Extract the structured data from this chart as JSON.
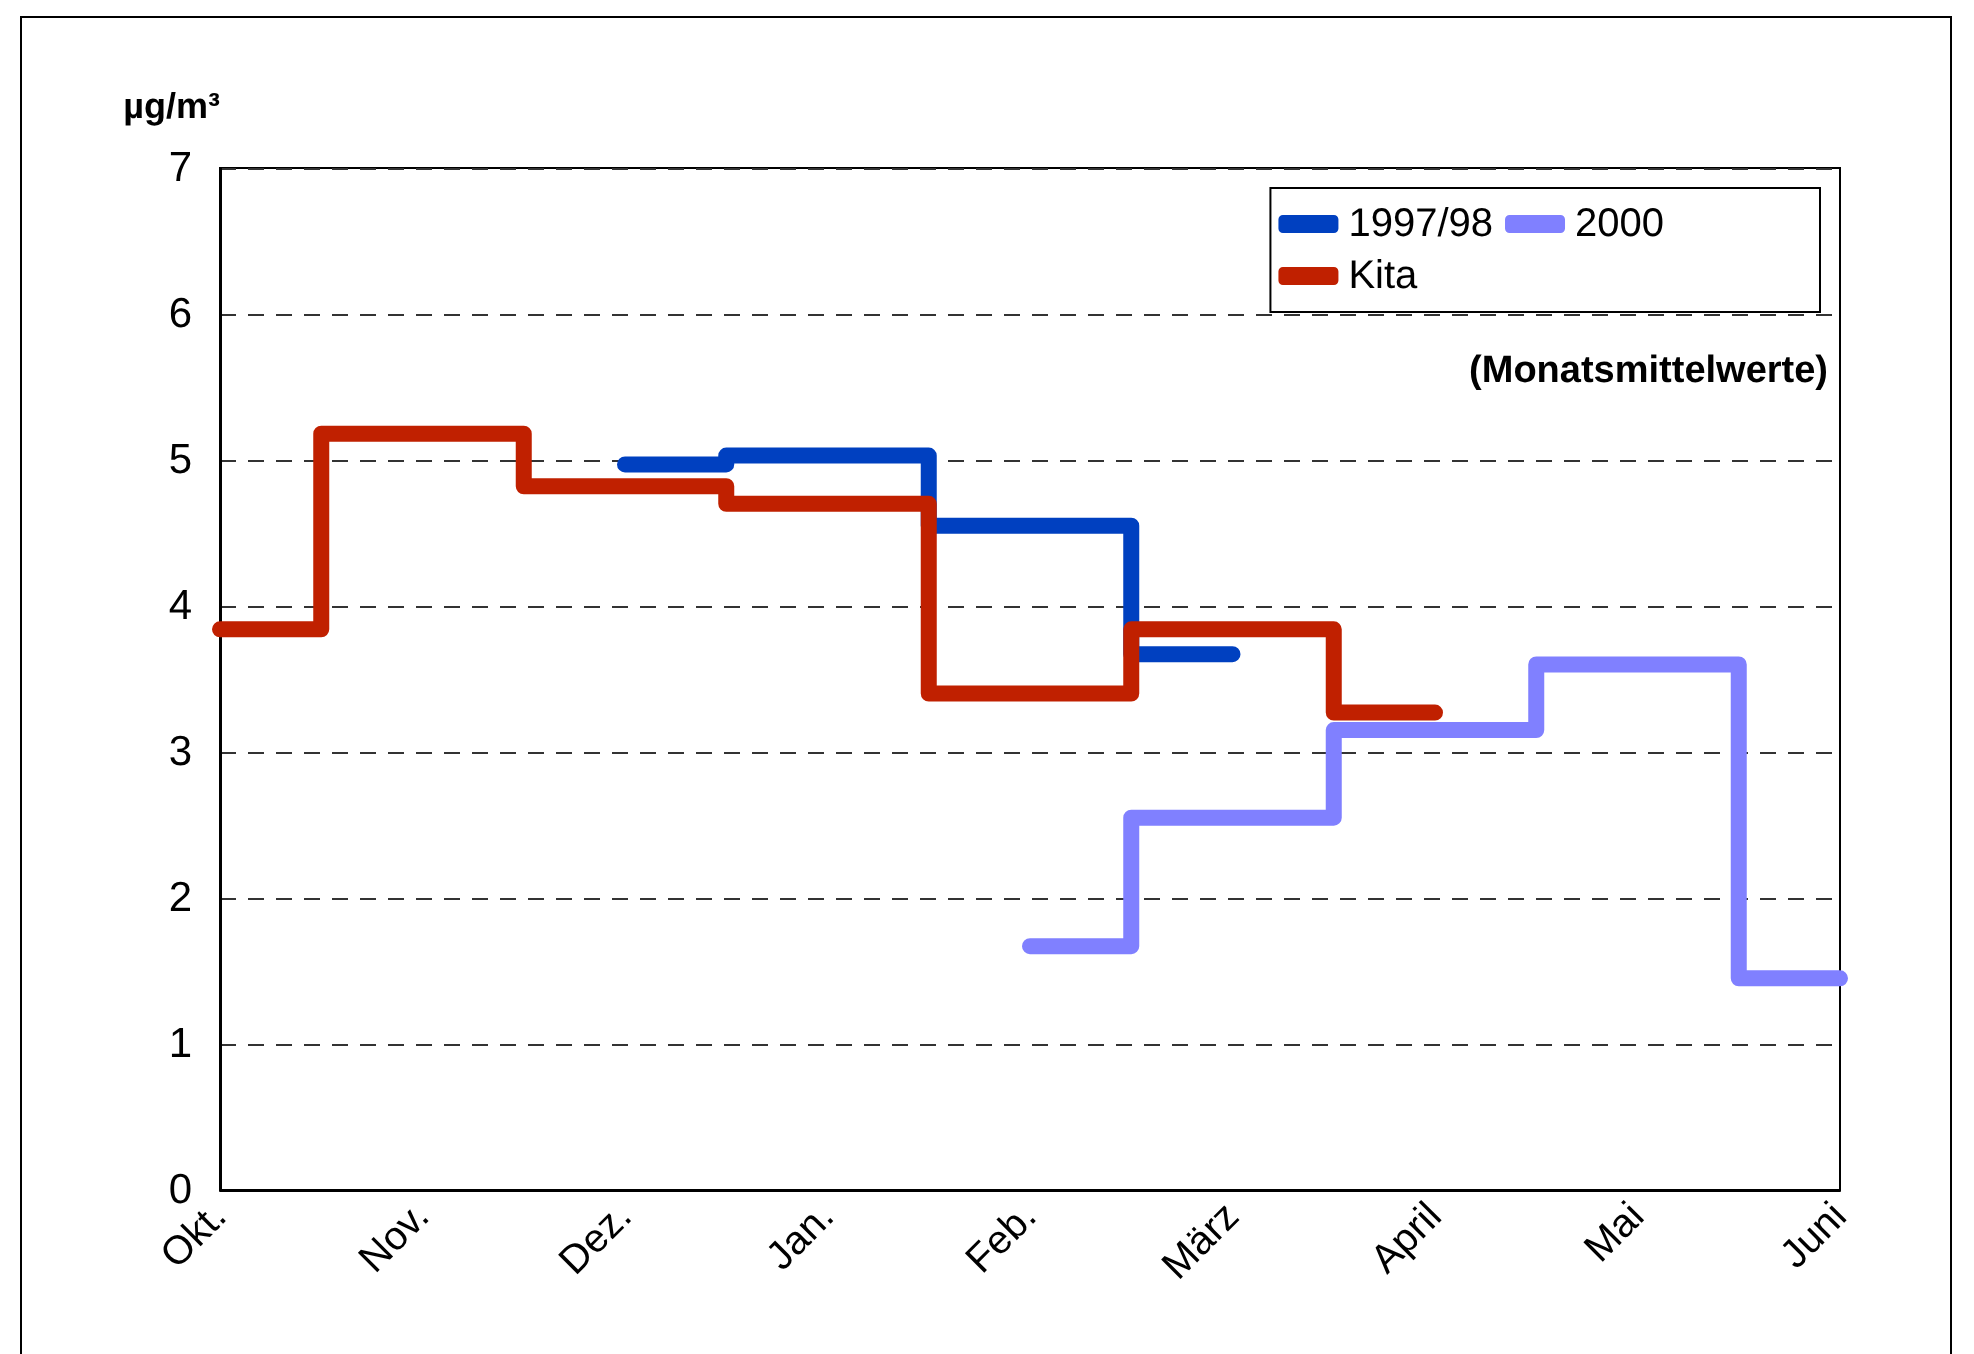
{
  "chart_data": {
    "type": "step",
    "ylabel": "µg/m³",
    "annotations": [
      "(Monatsmittelwerte)"
    ],
    "categories": [
      "Okt.",
      "Nov.",
      "Dez.",
      "Jan.",
      "Feb.",
      "März",
      "April",
      "Mai",
      "Juni"
    ],
    "series": [
      {
        "name": "1997/98",
        "color": "#0040c0",
        "values": [
          null,
          null,
          4.97,
          5.03,
          4.55,
          3.67,
          null,
          null,
          null
        ]
      },
      {
        "name": "2000",
        "color": "#8080ff",
        "values": [
          null,
          null,
          null,
          null,
          1.67,
          2.55,
          3.15,
          3.6,
          1.45
        ]
      },
      {
        "name": "Kita",
        "color": "#c02000",
        "values": [
          3.84,
          5.18,
          4.82,
          4.7,
          3.4,
          3.84,
          3.27,
          null,
          null
        ]
      }
    ],
    "ylim": [
      0,
      7
    ],
    "yticks": [
      0,
      1,
      2,
      3,
      4,
      5,
      6,
      7
    ],
    "grid": "y",
    "legend": "top right",
    "marker": "none",
    "line_style": "solid"
  }
}
